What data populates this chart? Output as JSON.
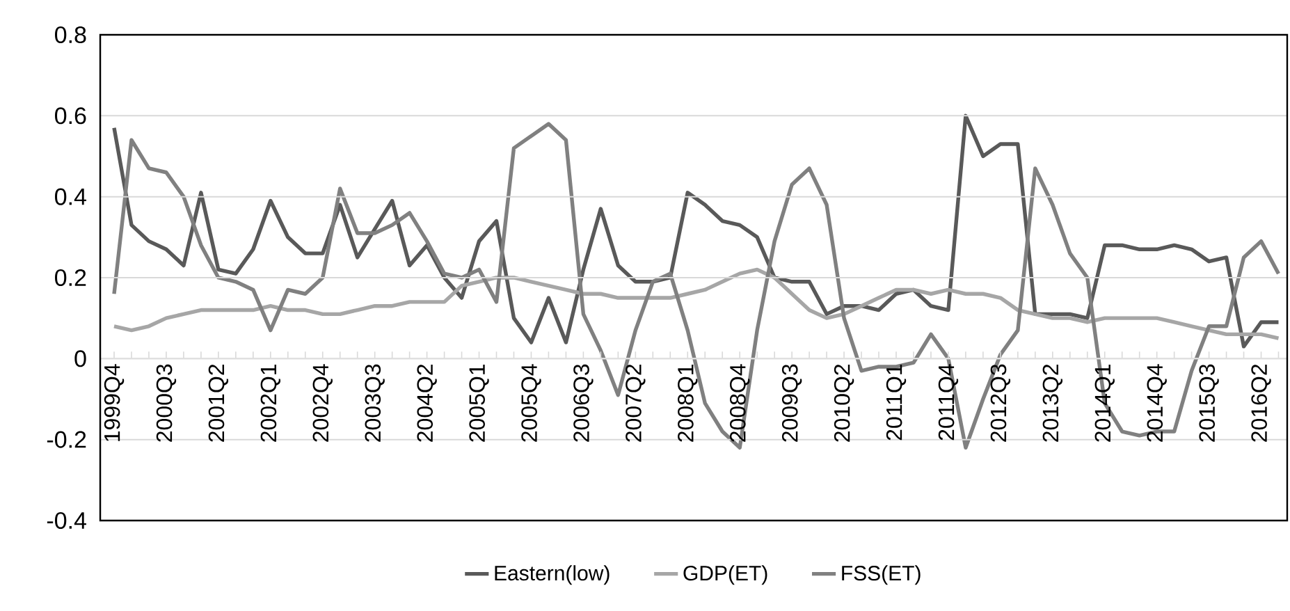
{
  "chart_data": {
    "type": "line",
    "categories": [
      "1999Q4",
      null,
      null,
      "2000Q3",
      null,
      null,
      "2001Q2",
      null,
      null,
      "2002Q1",
      null,
      null,
      "2002Q4",
      null,
      null,
      "2003Q3",
      null,
      null,
      "2004Q2",
      null,
      null,
      "2005Q1",
      null,
      null,
      "2005Q4",
      null,
      null,
      "2006Q3",
      null,
      null,
      "2007Q2",
      null,
      null,
      "2008Q1",
      null,
      null,
      "2008Q4",
      null,
      null,
      "2009Q3",
      null,
      null,
      "2010Q2",
      null,
      null,
      "2011Q1",
      null,
      null,
      "2011Q4",
      null,
      null,
      "2012Q3",
      null,
      null,
      "2013Q2",
      null,
      null,
      "2014Q1",
      null,
      null,
      "2014Q4",
      null,
      null,
      "2015Q3",
      null,
      null,
      "2016Q2",
      null
    ],
    "series": [
      {
        "name": "Eastern(low)",
        "color": "#595959",
        "values": [
          0.57,
          0.33,
          0.29,
          0.27,
          0.23,
          0.41,
          0.22,
          0.21,
          0.27,
          0.39,
          0.3,
          0.26,
          0.26,
          0.38,
          0.25,
          0.32,
          0.39,
          0.23,
          0.28,
          0.2,
          0.15,
          0.29,
          0.34,
          0.1,
          0.04,
          0.15,
          0.04,
          0.22,
          0.37,
          0.23,
          0.19,
          0.19,
          0.2,
          0.41,
          0.38,
          0.34,
          0.33,
          0.3,
          0.2,
          0.19,
          0.19,
          0.11,
          0.13,
          0.13,
          0.12,
          0.16,
          0.17,
          0.13,
          0.12,
          0.6,
          0.5,
          0.53,
          0.53,
          0.11,
          0.11,
          0.11,
          0.1,
          0.28,
          0.28,
          0.27,
          0.27,
          0.28,
          0.27,
          0.24,
          0.25,
          0.03,
          0.09,
          0.09
        ]
      },
      {
        "name": "GDP(ET)",
        "color": "#a6a6a6",
        "values": [
          0.08,
          0.07,
          0.08,
          0.1,
          0.11,
          0.12,
          0.12,
          0.12,
          0.12,
          0.13,
          0.12,
          0.12,
          0.11,
          0.11,
          0.12,
          0.13,
          0.13,
          0.14,
          0.14,
          0.14,
          0.18,
          0.19,
          0.2,
          0.2,
          0.19,
          0.18,
          0.17,
          0.16,
          0.16,
          0.15,
          0.15,
          0.15,
          0.15,
          0.16,
          0.17,
          0.19,
          0.21,
          0.22,
          0.2,
          0.16,
          0.12,
          0.1,
          0.11,
          0.13,
          0.15,
          0.17,
          0.17,
          0.16,
          0.17,
          0.16,
          0.16,
          0.15,
          0.12,
          0.11,
          0.1,
          0.1,
          0.09,
          0.1,
          0.1,
          0.1,
          0.1,
          0.09,
          0.08,
          0.07,
          0.06,
          0.06,
          0.06,
          0.05
        ]
      },
      {
        "name": "FSS(ET)",
        "color": "#808080",
        "values": [
          0.16,
          0.54,
          0.47,
          0.46,
          0.4,
          0.28,
          0.2,
          0.19,
          0.17,
          0.07,
          0.17,
          0.16,
          0.2,
          0.42,
          0.31,
          0.31,
          0.33,
          0.36,
          0.29,
          0.21,
          0.2,
          0.22,
          0.14,
          0.52,
          0.55,
          0.58,
          0.54,
          0.11,
          0.02,
          -0.09,
          0.07,
          0.19,
          0.21,
          0.07,
          -0.11,
          -0.18,
          -0.22,
          0.07,
          0.29,
          0.43,
          0.47,
          0.38,
          0.1,
          -0.03,
          -0.02,
          -0.02,
          -0.01,
          0.06,
          0.0,
          -0.22,
          -0.1,
          0.01,
          0.07,
          0.47,
          0.38,
          0.26,
          0.2,
          -0.11,
          -0.18,
          -0.19,
          -0.18,
          -0.18,
          -0.03,
          0.08,
          0.08,
          0.25,
          0.29,
          0.21
        ]
      }
    ],
    "ylim": [
      -0.4,
      0.8
    ],
    "yticks": [
      -0.4,
      -0.2,
      0,
      0.2,
      0.4,
      0.6,
      0.8
    ],
    "grid": "y",
    "legend": "bottom"
  }
}
